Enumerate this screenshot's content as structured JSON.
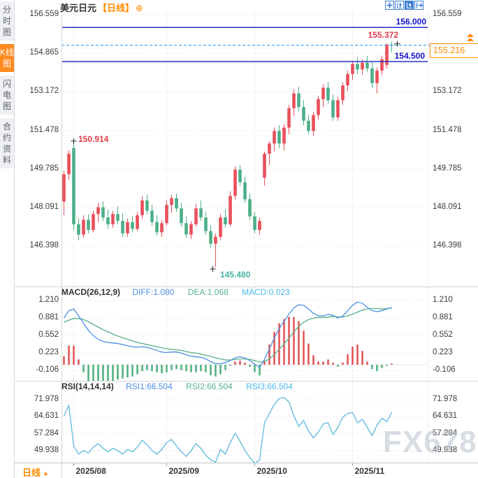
{
  "header": {
    "title": "美元日元",
    "period_tag": "【日线】",
    "add_icon": "⊕",
    "toolbar_icons": [
      "crosshair-icon",
      "axis-style-icon",
      "axis-style-active-icon",
      "exit-chart-icon"
    ]
  },
  "sidebar": {
    "items": [
      {
        "label": "分时图",
        "active": false
      },
      {
        "label": "K线图",
        "active": true
      },
      {
        "label": "闪电图",
        "active": false
      },
      {
        "label": "合约资料",
        "active": false
      }
    ]
  },
  "price_panel": {
    "y_ticks": [
      156.559,
      154.865,
      153.172,
      151.478,
      149.785,
      148.091,
      146.398
    ],
    "resistance_levels": [
      {
        "label": "156.000",
        "value": 156.0
      },
      {
        "label": "154.500",
        "value": 154.5
      }
    ],
    "current_price": {
      "label": "155.216",
      "value": 155.216
    },
    "annotations": [
      {
        "label": "150.914",
        "value": 150.914,
        "candle_index": 2,
        "type": "high"
      },
      {
        "label": "145.480",
        "value": 145.48,
        "candle_index": 31,
        "type": "low"
      },
      {
        "label": "155.372",
        "value": 155.372,
        "candle_index": 67,
        "type": "high"
      }
    ]
  },
  "macd_panel": {
    "indicator": "MACD(26,12,9)",
    "diff_label": "DIFF:1.080",
    "dea_label": "DEA:1.068",
    "macd_label": "MACD:0.023",
    "y_ticks": [
      1.21,
      0.881,
      0.552,
      0.223,
      -0.106
    ]
  },
  "rsi_panel": {
    "indicator": "RSI(14,14,14)",
    "rsi1_label": "RSI1:66.504",
    "rsi2_label": "RSI2:66.504",
    "rsi3_label": "RSI3:66.504",
    "y_ticks": [
      71.978,
      64.631,
      57.284,
      49.938
    ]
  },
  "bottom_bar": {
    "period_label": "日线",
    "period_arrow": "▲",
    "month_labels": [
      {
        "label": "2025/08",
        "candle_index": 2
      },
      {
        "label": "2025/09",
        "candle_index": 21
      },
      {
        "label": "2025/10",
        "candle_index": 39
      },
      {
        "label": "2025/11",
        "candle_index": 59
      }
    ]
  },
  "watermark": "FX678",
  "colors": {
    "candle_up": "#e8505b",
    "candle_down": "#4caf87",
    "level_line": "#2230c8",
    "current_dashed": "#4aa0e8",
    "accent_orange": "#ff8a00",
    "diff_line": "#4a8fe2",
    "dea_line": "#55b18a",
    "rsi_line": "#5cb9dc",
    "hist_up": "#e05252",
    "hist_down": "#4daf7c"
  },
  "chart_data": {
    "type": "candlestick",
    "title": "美元日元 日线",
    "legend_position": "top",
    "grid": true,
    "price_ylim": [
      146.0,
      156.8
    ],
    "price_y_ticks": [
      156.559,
      154.865,
      153.172,
      151.478,
      149.785,
      148.091,
      146.398
    ],
    "x_month_ticks": [
      {
        "label": "2025/08",
        "candle_index": 2
      },
      {
        "label": "2025/09",
        "candle_index": 21
      },
      {
        "label": "2025/10",
        "candle_index": 39
      },
      {
        "label": "2025/11",
        "candle_index": 59
      }
    ],
    "levels": {
      "resistance": [
        156.0,
        154.5
      ],
      "current": 155.216,
      "high": 155.372,
      "low": 145.48,
      "early_high": 150.914
    },
    "ohlc": [
      [
        148.35,
        149.7,
        147.75,
        149.55
      ],
      [
        149.55,
        150.6,
        149.3,
        150.45
      ],
      [
        150.7,
        150.914,
        147.1,
        147.35
      ],
      [
        147.35,
        147.6,
        146.65,
        146.9
      ],
      [
        146.9,
        147.75,
        146.75,
        147.55
      ],
      [
        147.55,
        147.8,
        146.95,
        147.1
      ],
      [
        147.1,
        147.95,
        147.0,
        147.8
      ],
      [
        147.8,
        148.3,
        147.45,
        148.1
      ],
      [
        148.1,
        148.35,
        147.5,
        147.65
      ],
      [
        147.65,
        148.0,
        147.15,
        147.35
      ],
      [
        147.35,
        147.95,
        147.2,
        147.8
      ],
      [
        147.8,
        148.15,
        147.35,
        147.5
      ],
      [
        147.5,
        147.85,
        146.8,
        146.95
      ],
      [
        146.95,
        147.6,
        146.8,
        147.45
      ],
      [
        147.45,
        147.7,
        147.0,
        147.15
      ],
      [
        147.15,
        147.9,
        147.05,
        147.75
      ],
      [
        147.75,
        148.6,
        147.6,
        148.4
      ],
      [
        148.4,
        148.65,
        147.8,
        147.95
      ],
      [
        147.95,
        148.2,
        147.3,
        147.45
      ],
      [
        147.45,
        147.75,
        146.85,
        147.0
      ],
      [
        147.0,
        147.55,
        146.8,
        147.4
      ],
      [
        147.4,
        148.4,
        147.3,
        148.2
      ],
      [
        148.2,
        148.65,
        147.85,
        148.5
      ],
      [
        148.5,
        148.7,
        147.9,
        148.05
      ],
      [
        148.05,
        148.3,
        147.25,
        147.4
      ],
      [
        147.4,
        147.7,
        146.75,
        146.9
      ],
      [
        146.9,
        147.5,
        146.7,
        147.35
      ],
      [
        147.35,
        148.25,
        147.25,
        148.05
      ],
      [
        148.05,
        148.4,
        147.5,
        147.65
      ],
      [
        147.65,
        147.9,
        146.9,
        147.05
      ],
      [
        147.05,
        147.3,
        146.3,
        146.5
      ],
      [
        146.5,
        146.95,
        145.48,
        146.8
      ],
      [
        146.8,
        147.8,
        146.65,
        147.65
      ],
      [
        147.65,
        148.0,
        147.2,
        147.35
      ],
      [
        147.35,
        148.8,
        147.25,
        148.6
      ],
      [
        148.6,
        149.9,
        148.45,
        149.75
      ],
      [
        149.75,
        149.95,
        149.05,
        149.2
      ],
      [
        149.2,
        149.45,
        148.3,
        148.45
      ],
      [
        148.45,
        148.7,
        147.55,
        147.7
      ],
      [
        147.7,
        147.9,
        146.95,
        147.1
      ],
      [
        147.1,
        147.65,
        146.9,
        147.5
      ],
      [
        149.4,
        150.55,
        149.05,
        150.45
      ],
      [
        150.45,
        151.0,
        149.95,
        150.9
      ],
      [
        150.9,
        151.6,
        150.55,
        151.45
      ],
      [
        151.45,
        151.7,
        150.7,
        150.9
      ],
      [
        150.9,
        151.75,
        150.6,
        151.6
      ],
      [
        151.6,
        152.6,
        151.3,
        152.45
      ],
      [
        152.45,
        153.3,
        152.1,
        153.1
      ],
      [
        153.1,
        153.4,
        152.3,
        152.5
      ],
      [
        152.5,
        152.8,
        151.7,
        151.9
      ],
      [
        151.9,
        152.15,
        151.3,
        151.45
      ],
      [
        151.45,
        152.3,
        151.25,
        152.15
      ],
      [
        152.15,
        153.0,
        151.95,
        152.85
      ],
      [
        152.85,
        153.5,
        152.5,
        153.35
      ],
      [
        153.35,
        153.6,
        152.65,
        152.8
      ],
      [
        152.8,
        153.05,
        151.9,
        152.05
      ],
      [
        152.05,
        152.95,
        151.9,
        152.8
      ],
      [
        152.8,
        153.6,
        152.6,
        153.45
      ],
      [
        153.45,
        154.1,
        153.2,
        153.95
      ],
      [
        153.95,
        154.55,
        153.7,
        154.4
      ],
      [
        154.4,
        154.7,
        153.95,
        154.15
      ],
      [
        154.15,
        154.6,
        153.9,
        154.45
      ],
      [
        154.45,
        154.75,
        154.05,
        154.2
      ],
      [
        154.2,
        154.5,
        153.35,
        153.55
      ],
      [
        153.55,
        154.25,
        153.1,
        154.1
      ],
      [
        154.1,
        154.75,
        153.9,
        154.6
      ],
      [
        154.35,
        155.3,
        154.2,
        155.25
      ],
      [
        155.25,
        155.372,
        154.9,
        155.216
      ]
    ],
    "macd": {
      "y_ticks": [
        1.21,
        0.881,
        0.552,
        0.223,
        -0.106
      ],
      "hist_rule": "2*(diff-dea)",
      "last": {
        "diff": 1.08,
        "dea": 1.068,
        "macd": 0.023
      },
      "diff": [
        0.88,
        1.02,
        1.05,
        0.92,
        0.78,
        0.65,
        0.55,
        0.48,
        0.44,
        0.42,
        0.41,
        0.4,
        0.38,
        0.36,
        0.34,
        0.33,
        0.34,
        0.33,
        0.3,
        0.27,
        0.24,
        0.23,
        0.24,
        0.24,
        0.22,
        0.19,
        0.16,
        0.15,
        0.14,
        0.11,
        0.06,
        0.02,
        0.02,
        0.04,
        0.08,
        0.13,
        0.15,
        0.13,
        0.08,
        0.01,
        -0.05,
        0.1,
        0.3,
        0.5,
        0.68,
        0.82,
        0.95,
        1.07,
        1.13,
        1.12,
        1.05,
        0.97,
        0.92,
        0.92,
        0.95,
        0.93,
        0.88,
        0.92,
        1.02,
        1.12,
        1.18,
        1.16,
        1.08,
        1.02,
        1.0,
        1.02,
        1.05,
        1.08
      ],
      "dea": [
        0.8,
        0.84,
        0.87,
        0.87,
        0.85,
        0.81,
        0.76,
        0.71,
        0.66,
        0.62,
        0.58,
        0.54,
        0.51,
        0.48,
        0.45,
        0.42,
        0.4,
        0.38,
        0.36,
        0.34,
        0.32,
        0.3,
        0.29,
        0.28,
        0.27,
        0.25,
        0.23,
        0.22,
        0.2,
        0.18,
        0.16,
        0.13,
        0.11,
        0.09,
        0.09,
        0.1,
        0.11,
        0.11,
        0.1,
        0.08,
        0.05,
        0.06,
        0.11,
        0.19,
        0.29,
        0.39,
        0.5,
        0.62,
        0.72,
        0.8,
        0.85,
        0.88,
        0.89,
        0.89,
        0.9,
        0.91,
        0.9,
        0.9,
        0.92,
        0.95,
        0.99,
        1.03,
        1.05,
        1.06,
        1.06,
        1.05,
        1.06,
        1.068
      ]
    },
    "rsi": {
      "y_ticks": [
        71.978,
        64.631,
        57.284,
        49.938
      ],
      "last": 66.504,
      "values": [
        65.0,
        69.5,
        52.0,
        48.5,
        50.0,
        49.0,
        51.5,
        53.0,
        51.0,
        49.5,
        51.0,
        50.0,
        48.5,
        50.5,
        49.5,
        51.5,
        54.5,
        52.5,
        50.0,
        48.5,
        50.5,
        53.5,
        54.8,
        52.0,
        49.5,
        47.5,
        50.0,
        53.0,
        51.0,
        48.0,
        46.0,
        45.0,
        50.5,
        48.5,
        53.5,
        57.5,
        54.0,
        50.0,
        47.0,
        44.5,
        46.0,
        62.0,
        66.0,
        70.0,
        72.5,
        73.0,
        71.0,
        65.0,
        60.5,
        63.0,
        58.5,
        55.5,
        58.0,
        61.5,
        62.0,
        57.0,
        60.0,
        64.5,
        66.0,
        66.5,
        62.0,
        63.5,
        60.0,
        56.5,
        61.0,
        64.0,
        62.5,
        66.504
      ]
    }
  }
}
